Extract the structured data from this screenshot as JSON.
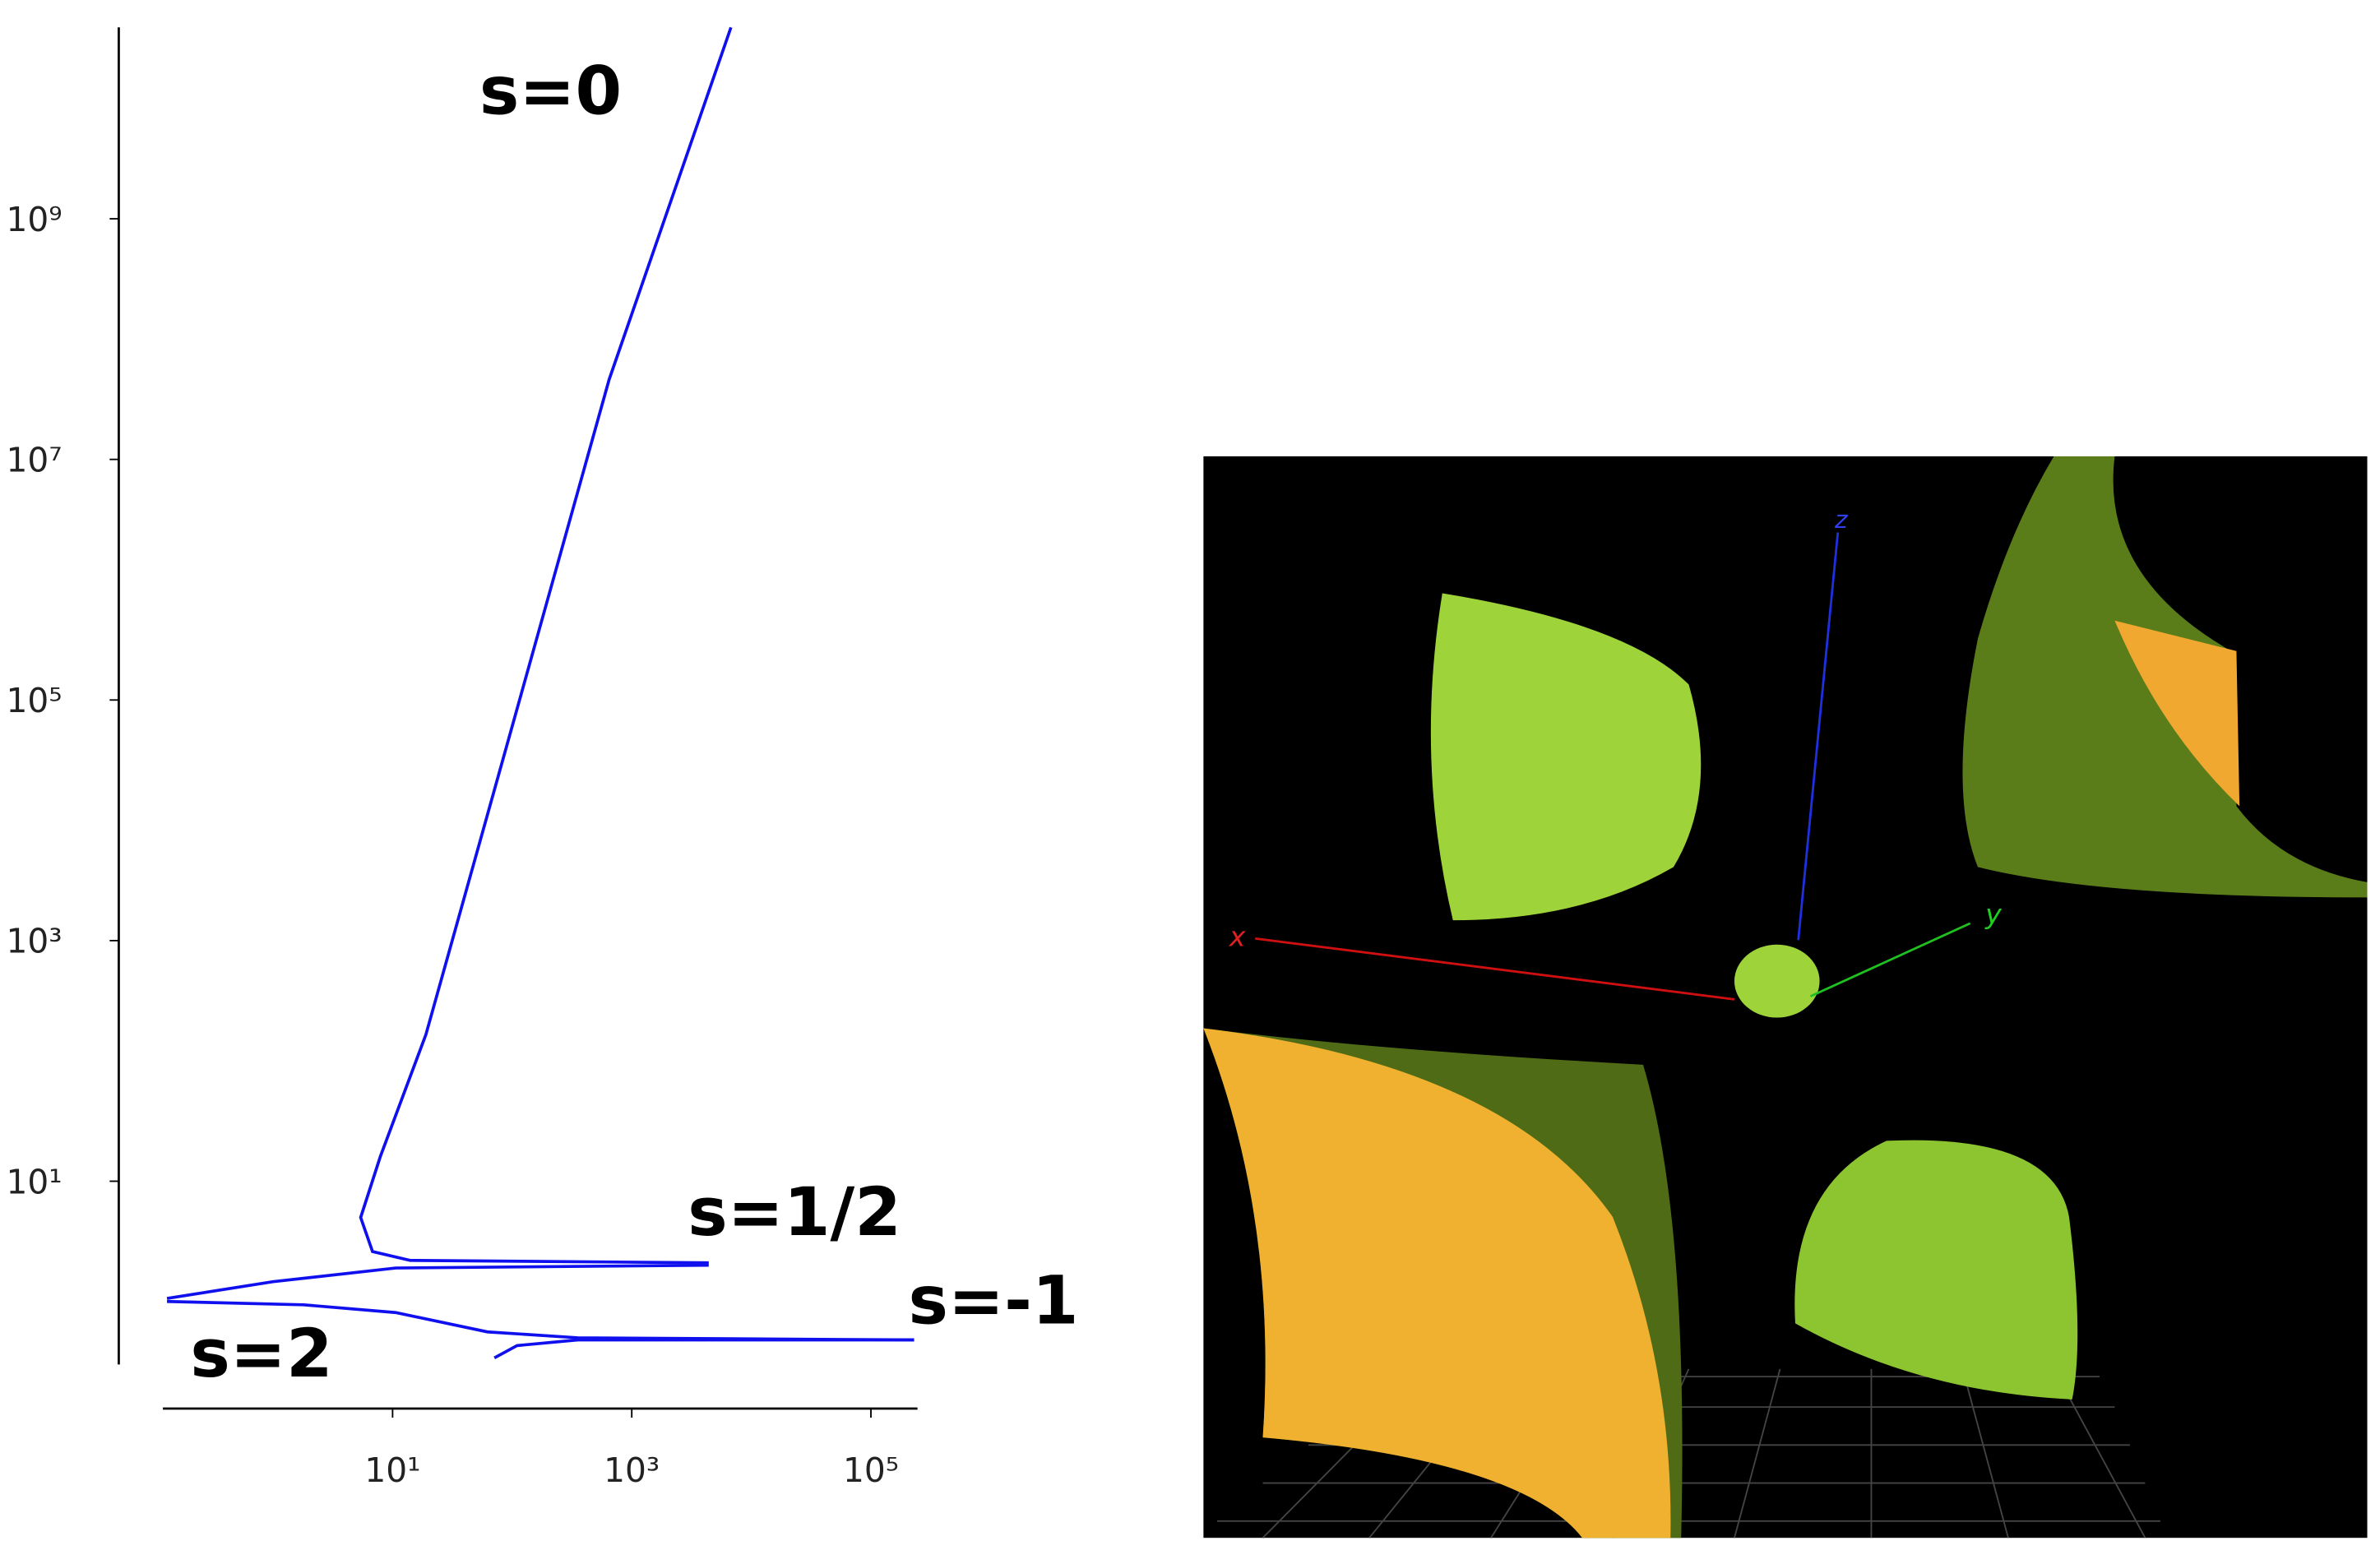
{
  "chart_data": {
    "type": "line",
    "log_x": true,
    "log_y": true,
    "xlim": [
      0.12,
      245000
    ],
    "ylim": [
      0.3,
      39000000000
    ],
    "xticks": [
      {
        "value": 10,
        "label": "10¹"
      },
      {
        "value": 1000,
        "label": "10³"
      },
      {
        "value": 100000,
        "label": "10⁵"
      }
    ],
    "yticks": [
      {
        "value": 10,
        "label": "10¹"
      },
      {
        "value": 1000,
        "label": "10³"
      },
      {
        "value": 100000,
        "label": "10⁵"
      },
      {
        "value": 10000000,
        "label": "10⁷"
      },
      {
        "value": 1000000000,
        "label": "10⁹"
      }
    ],
    "series": [
      {
        "name": "s=0",
        "color": "#1010ee",
        "x": [
          6760,
          646,
          83,
          19,
          7.9,
          5.4,
          6.8,
          14,
          4400
        ],
        "y": [
          39000000000,
          46000000,
          31000,
          166,
          16,
          5.0,
          2.6,
          2.2,
          2.1
        ]
      },
      {
        "name": "s=1/2",
        "color": "#1010ee",
        "x": [
          0.13,
          1.0,
          10.6,
          4400
        ],
        "y": [
          1.06,
          1.46,
          1.9,
          2.0
        ]
      },
      {
        "name": "s=-1",
        "color": "#1010ee",
        "x": [
          71,
          110,
          355,
          230000
        ],
        "y": [
          0.34,
          0.43,
          0.48,
          0.48
        ]
      },
      {
        "name": "s=2",
        "color": "#1010ee",
        "x": [
          0.13,
          1.8,
          10.6,
          62,
          355,
          230000
        ],
        "y": [
          1.0,
          0.94,
          0.81,
          0.56,
          0.5,
          0.48
        ]
      }
    ]
  },
  "scene_3d": {
    "axis_labels": {
      "x": "x",
      "y": "y",
      "z": "z"
    }
  }
}
